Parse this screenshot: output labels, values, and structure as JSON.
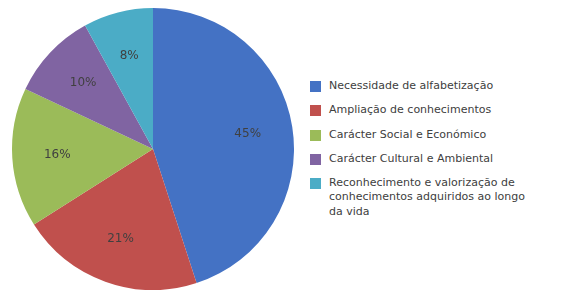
{
  "chart_data": {
    "type": "pie",
    "categories": [
      "Necessidade de alfabetização",
      "Ampliação de conhecimentos",
      "Carácter Social e Económico",
      "Carácter Cultural e Ambiental",
      "Reconhecimento e valorização de\nconhecimentos adquiridos ao longo\nda vida"
    ],
    "values": [
      45,
      21,
      16,
      10,
      8
    ],
    "value_labels": [
      "45%",
      "21%",
      "16%",
      "10%",
      "8%"
    ],
    "colors": [
      "#4472C4",
      "#C0504D",
      "#9BBB59",
      "#8064A2",
      "#4BACC6"
    ],
    "data_labels": true,
    "legend": "right"
  }
}
